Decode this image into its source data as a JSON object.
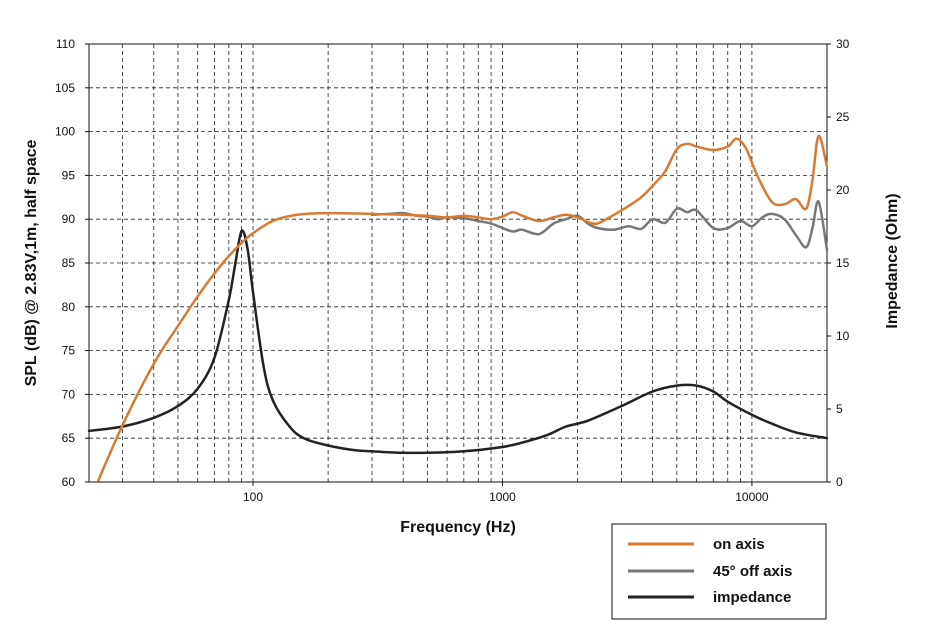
{
  "chart_data": {
    "type": "line",
    "xlabel": "Frequency (Hz)",
    "ylabel": "SPL (dB) @ 2.83V,1m, half space",
    "y2label": "Impedance (Ohm)",
    "x_scale": "log",
    "xlim": [
      22,
      20000
    ],
    "ylim": [
      60,
      110
    ],
    "y2lim": [
      0,
      30
    ],
    "x_ticks": [
      100,
      1000,
      10000
    ],
    "x_tick_labels": [
      "100",
      "1000",
      "10000"
    ],
    "y_ticks": [
      60,
      65,
      70,
      75,
      80,
      85,
      90,
      95,
      100,
      105,
      110
    ],
    "y_tick_labels": [
      "60",
      "65",
      "70",
      "75",
      "80",
      "85",
      "90",
      "95",
      "100",
      "105",
      "110"
    ],
    "y2_ticks": [
      0,
      5,
      10,
      15,
      20,
      25,
      30
    ],
    "y2_tick_labels": [
      "0",
      "5",
      "10",
      "15",
      "20",
      "25",
      "30"
    ],
    "grid": true,
    "legend": "bottom-right",
    "series": [
      {
        "name": "on axis",
        "color": "#d87a32",
        "axis": "left",
        "x": [
          24,
          30,
          40,
          50,
          60,
          70,
          80,
          90,
          100,
          120,
          150,
          200,
          300,
          400,
          500,
          600,
          700,
          800,
          900,
          1000,
          1100,
          1200,
          1400,
          1600,
          1800,
          2000,
          2200,
          2400,
          2800,
          3200,
          3600,
          4000,
          4500,
          5000,
          5500,
          6000,
          7000,
          8000,
          8700,
          9500,
          10500,
          12000,
          13500,
          15000,
          16500,
          17500,
          18500,
          20000
        ],
        "y": [
          60.2,
          66.5,
          73.5,
          77.8,
          81.2,
          83.8,
          85.8,
          87.3,
          88.4,
          89.8,
          90.5,
          90.7,
          90.6,
          90.5,
          90.4,
          90.2,
          90.4,
          90.2,
          90.0,
          90.3,
          90.8,
          90.4,
          89.8,
          90.2,
          90.5,
          90.2,
          89.7,
          89.5,
          90.5,
          91.5,
          92.5,
          93.8,
          95.5,
          98.0,
          98.6,
          98.3,
          97.9,
          98.3,
          99.2,
          98.0,
          95.0,
          92.0,
          91.7,
          92.3,
          91.2,
          94.5,
          99.5,
          96.0
        ]
      },
      {
        "name": "45° off axis",
        "color": "#777777",
        "axis": "left",
        "x": [
          300,
          350,
          400,
          450,
          500,
          550,
          600,
          700,
          800,
          900,
          1000,
          1100,
          1200,
          1400,
          1600,
          1800,
          2000,
          2200,
          2400,
          2800,
          3200,
          3600,
          4000,
          4500,
          5000,
          5500,
          6000,
          7000,
          8000,
          9000,
          10000,
          11000,
          12000,
          13500,
          15000,
          16500,
          17500,
          18500,
          20000
        ],
        "y": [
          90.5,
          90.6,
          90.7,
          90.4,
          90.3,
          90.0,
          90.2,
          90.1,
          89.8,
          89.5,
          89.0,
          88.6,
          88.8,
          88.3,
          89.5,
          90.0,
          90.4,
          89.5,
          89.0,
          88.8,
          89.2,
          88.9,
          90.0,
          89.6,
          91.2,
          90.8,
          91.0,
          89.0,
          89.0,
          89.8,
          89.2,
          90.2,
          90.6,
          90.0,
          88.2,
          86.8,
          89.0,
          92.0,
          86.5
        ]
      },
      {
        "name": "impedance",
        "color": "#222222",
        "axis": "right",
        "x": [
          22,
          30,
          40,
          50,
          60,
          70,
          80,
          85,
          90,
          95,
          100,
          110,
          120,
          140,
          160,
          200,
          250,
          300,
          400,
          500,
          700,
          1000,
          1200,
          1500,
          1800,
          2200,
          3000,
          4000,
          5000,
          6000,
          7000,
          8000,
          10000,
          12000,
          15000,
          20000
        ],
        "y": [
          3.5,
          3.8,
          4.4,
          5.2,
          6.4,
          8.5,
          12.5,
          15.0,
          17.2,
          16.0,
          13.0,
          8.0,
          5.6,
          3.8,
          3.0,
          2.5,
          2.2,
          2.1,
          2.0,
          2.0,
          2.1,
          2.4,
          2.7,
          3.2,
          3.8,
          4.2,
          5.2,
          6.2,
          6.6,
          6.6,
          6.2,
          5.5,
          4.6,
          4.0,
          3.4,
          3.0
        ]
      }
    ]
  }
}
